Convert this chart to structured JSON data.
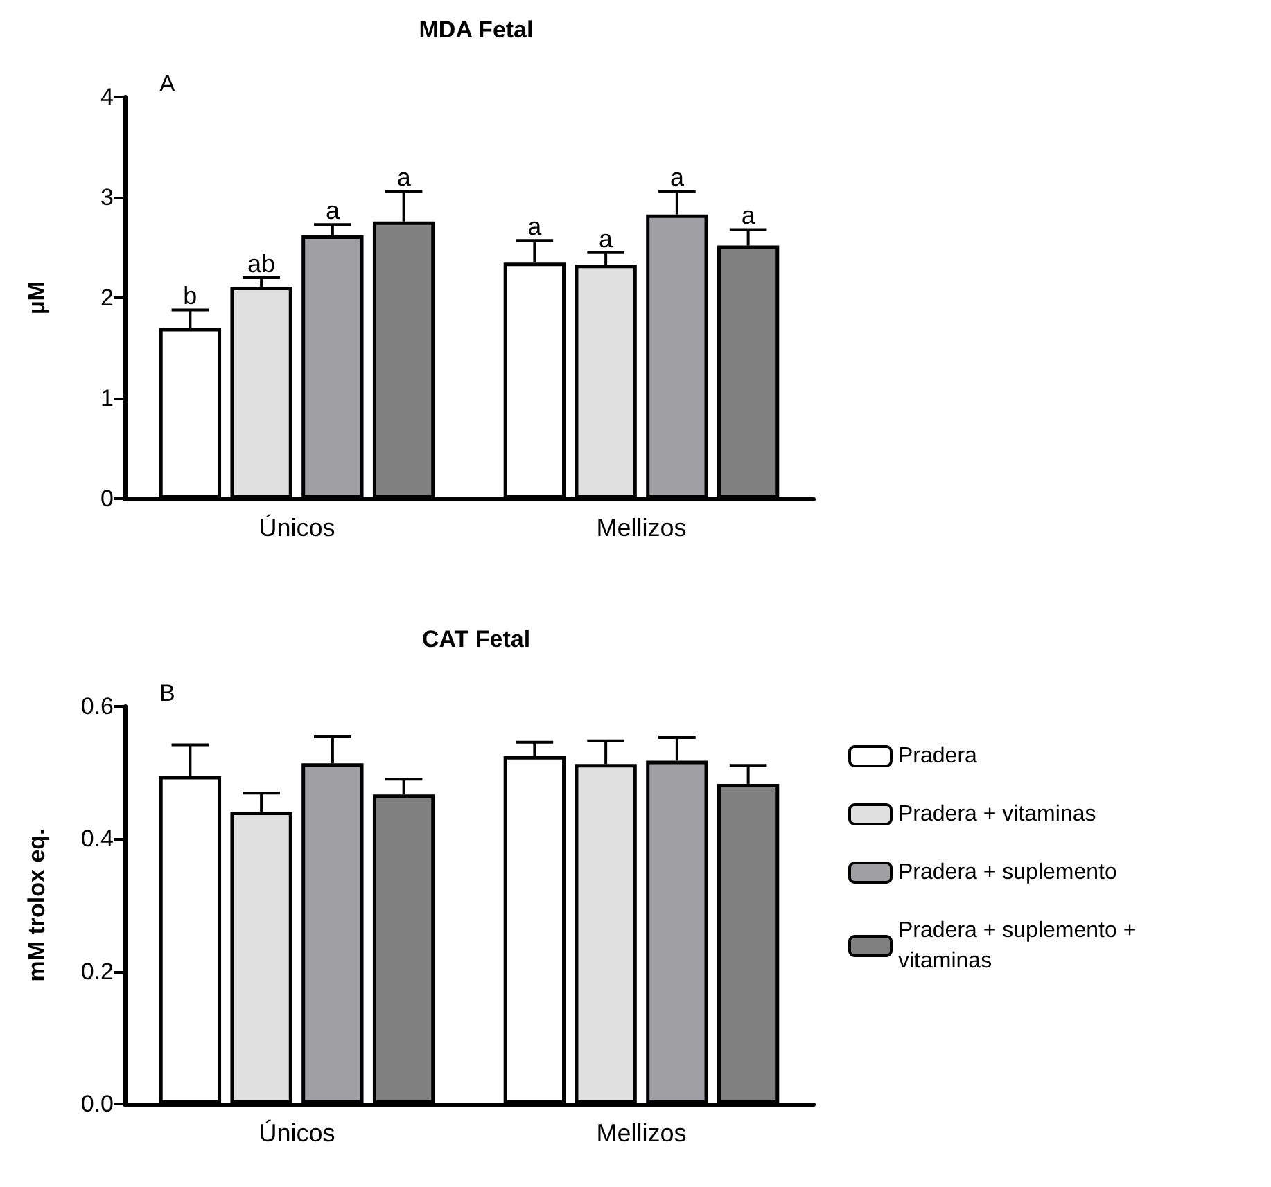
{
  "chart_data": [
    {
      "type": "bar",
      "title": "MDA Fetal",
      "ylabel": "µM",
      "annotations": [
        "A"
      ],
      "categories": [
        "Únicos",
        "Mellizos"
      ],
      "ylim": [
        0,
        4
      ],
      "yticks": [
        0,
        1,
        2,
        3,
        4
      ],
      "grid": false,
      "legend": false,
      "series": [
        {
          "color": "#ffffff",
          "values": [
            1.7,
            2.35
          ],
          "errors": [
            [
              1.7,
              1.88
            ],
            [
              2.35,
              2.57
            ]
          ],
          "value_labels": [
            "b",
            "a"
          ]
        },
        {
          "color": "#e0e0e0",
          "values": [
            2.11,
            2.33
          ],
          "errors": [
            [
              2.11,
              2.2
            ],
            [
              2.33,
              2.45
            ]
          ],
          "value_labels": [
            "ab",
            "a"
          ]
        },
        {
          "color": "#a0a0a4",
          "values": [
            2.62,
            2.83
          ],
          "errors": [
            [
              2.62,
              2.73
            ],
            [
              2.83,
              3.06
            ]
          ],
          "value_labels": [
            "a",
            "a"
          ]
        },
        {
          "color": "#808080",
          "values": [
            2.76,
            2.52
          ],
          "errors": [
            [
              2.76,
              3.06
            ],
            [
              2.52,
              2.68
            ]
          ],
          "value_labels": [
            "a",
            "a"
          ]
        }
      ]
    },
    {
      "type": "bar",
      "title": "CAT Fetal",
      "ylabel": "mM trolox eq.",
      "annotations": [
        "B"
      ],
      "categories": [
        "Únicos",
        "Mellizos"
      ],
      "ylim": [
        0,
        0.6
      ],
      "yticks": [
        {
          "value": 0,
          "label": "0.0"
        },
        0.2,
        0.4,
        0.6
      ],
      "grid": false,
      "legend": "right",
      "series": [
        {
          "name": "Pradera",
          "color": "#ffffff",
          "values": [
            0.495,
            0.525
          ],
          "errors": [
            [
              0.495,
              0.542
            ],
            [
              0.525,
              0.546
            ]
          ]
        },
        {
          "name": "Pradera + vitaminas",
          "color": "#e0e0e0",
          "values": [
            0.441,
            0.513
          ],
          "errors": [
            [
              0.441,
              0.469
            ],
            [
              0.513,
              0.548
            ]
          ]
        },
        {
          "name": "Pradera + suplemento",
          "color": "#a0a0a4",
          "values": [
            0.514,
            0.518
          ],
          "errors": [
            [
              0.514,
              0.554
            ],
            [
              0.518,
              0.553
            ]
          ]
        },
        {
          "name": "Pradera + suplemento + vitaminas",
          "color": "#808080",
          "values": [
            0.467,
            0.483
          ],
          "errors": [
            [
              0.467,
              0.49
            ],
            [
              0.483,
              0.511
            ]
          ]
        }
      ]
    }
  ]
}
